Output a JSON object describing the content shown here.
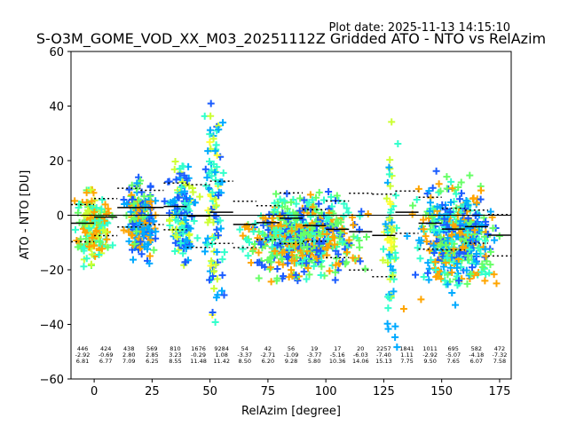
{
  "plot_date": "Plot date: 2025-11-13 14:15:10",
  "chart_data": {
    "type": "scatter",
    "title": "S-O3M_GOME_VOD_XX_M03_20251112Z Gridded ATO - NTO vs RelAzim",
    "xlabel": "RelAzim [degree]",
    "ylabel": "ATO - NTO [DU]",
    "xlim": [
      -10,
      180
    ],
    "ylim": [
      -60,
      60
    ],
    "xticks": [
      0,
      25,
      50,
      75,
      100,
      125,
      150,
      175
    ],
    "yticks": [
      -60,
      -40,
      -20,
      0,
      20,
      40,
      60
    ],
    "grid": false,
    "reference_line": 0,
    "bin_width": 10,
    "marker": "+",
    "point_clusters": [
      {
        "x": [
          -10,
          10
        ],
        "y": [
          -22,
          14
        ],
        "colors": [
          "#ffa500",
          "#ccff33",
          "#66ff66",
          "#33ffcc"
        ]
      },
      {
        "x": [
          10,
          30
        ],
        "y": [
          -20,
          18
        ],
        "colors": [
          "#00aaff",
          "#66ff66",
          "#ffa500",
          "#1a5cff"
        ]
      },
      {
        "x": [
          30,
          46
        ],
        "y": [
          -25,
          25
        ],
        "colors": [
          "#00aaff",
          "#33ffcc",
          "#ccff33",
          "#1a5cff"
        ]
      },
      {
        "x": [
          46,
          58
        ],
        "y": [
          -50,
          55
        ],
        "colors": [
          "#00aaff",
          "#33ffcc",
          "#ccff33",
          "#1a5cff",
          "#ffff33"
        ]
      },
      {
        "x": [
          58,
          122
        ],
        "y": [
          -28,
          12
        ],
        "colors": [
          "#33ffcc",
          "#66ff66",
          "#ffa500",
          "#1a5cff"
        ]
      },
      {
        "x": [
          124,
          132
        ],
        "y": [
          -58,
          45
        ],
        "colors": [
          "#ccff33",
          "#33ffcc",
          "#00aaff",
          "#ffff33"
        ]
      },
      {
        "x": [
          132,
          180
        ],
        "y": [
          -35,
          20
        ],
        "colors": [
          "#33ffcc",
          "#00aaff",
          "#ffa500",
          "#1a5cff",
          "#66ff66"
        ]
      }
    ],
    "bins": [
      {
        "x": -5,
        "n": "446",
        "mean": "-2.92",
        "std": "6.81"
      },
      {
        "x": 5,
        "n": "424",
        "mean": "-0.69",
        "std": "6.77"
      },
      {
        "x": 15,
        "n": "438",
        "mean": "2.80",
        "std": "7.09"
      },
      {
        "x": 25,
        "n": "569",
        "mean": "2.85",
        "std": "6.25"
      },
      {
        "x": 35,
        "n": "810",
        "mean": "3.23",
        "std": "8.55"
      },
      {
        "x": 45,
        "n": "1676",
        "mean": "-0.29",
        "std": "11.48"
      },
      {
        "x": 55,
        "n": "9284",
        "mean": "1.08",
        "std": "11.42"
      },
      {
        "x": 65,
        "n": "54",
        "mean": "-3.37",
        "std": "8.50"
      },
      {
        "x": 75,
        "n": "42",
        "mean": "-2.71",
        "std": "6.20"
      },
      {
        "x": 85,
        "n": "56",
        "mean": "-1.09",
        "std": "9.28"
      },
      {
        "x": 95,
        "n": "19",
        "mean": "-3.77",
        "std": "5.80"
      },
      {
        "x": 105,
        "n": "17",
        "mean": "-5.16",
        "std": "10.36"
      },
      {
        "x": 115,
        "n": "20",
        "mean": "-6.03",
        "std": "14.06"
      },
      {
        "x": 125,
        "n": "2257",
        "mean": "-7.40",
        "std": "15.13"
      },
      {
        "x": 135,
        "n": "1841",
        "mean": "1.11",
        "std": "7.75"
      },
      {
        "x": 145,
        "n": "1011",
        "mean": "-2.92",
        "std": "9.50"
      },
      {
        "x": 155,
        "n": "695",
        "mean": "-5.07",
        "std": "7.65"
      },
      {
        "x": 165,
        "n": "582",
        "mean": "-4.18",
        "std": "6.07"
      },
      {
        "x": 175,
        "n": "472",
        "mean": "-7.32",
        "std": "7.58"
      }
    ]
  }
}
